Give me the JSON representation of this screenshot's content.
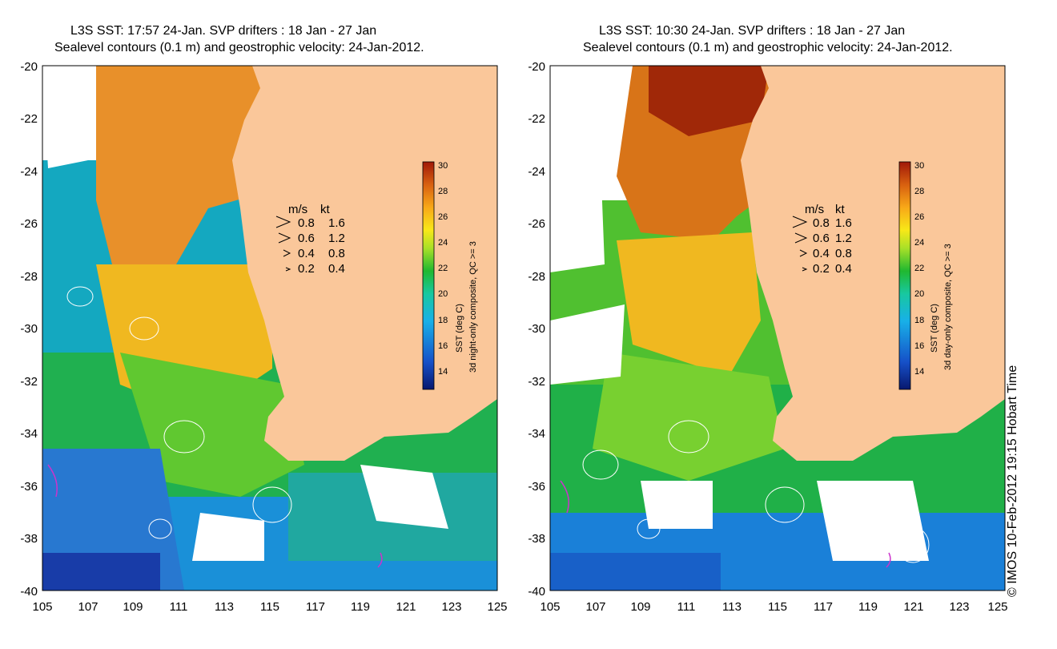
{
  "colors": {
    "land": "#fac79a",
    "frame": "#000000",
    "contour": "#ffffff",
    "drifter": "#cc33cc"
  },
  "credit": "© IMOS 10-Feb-2012 19:15 Hobart Time",
  "axes": {
    "lon_range": [
      105,
      125
    ],
    "lat_range": [
      -40,
      -20
    ],
    "x_ticks": [
      "105",
      "107",
      "109",
      "111",
      "113",
      "115",
      "117",
      "119",
      "121",
      "123",
      "125"
    ],
    "y_ticks": [
      "-20",
      "-22",
      "-24",
      "-26",
      "-28",
      "-30",
      "-32",
      "-34",
      "-36",
      "-38",
      "-40"
    ]
  },
  "velocity_legend": {
    "unit_ms": "m/s",
    "unit_kt": "kt",
    "rows": [
      {
        "ms": "0.8",
        "kt": "1.6"
      },
      {
        "ms": "0.6",
        "kt": "1.2"
      },
      {
        "ms": "0.4",
        "kt": "0.8"
      },
      {
        "ms": "0.2",
        "kt": "0.4"
      }
    ]
  },
  "colorbar": {
    "range": [
      13,
      30
    ],
    "ticks": [
      "30",
      "28",
      "26",
      "24",
      "22",
      "20",
      "18",
      "16",
      "14"
    ],
    "label": "SST (deg C)"
  },
  "panels": [
    {
      "title_line1": "L3S SST: 17:57 24-Jan. SVP drifters : 18 Jan - 27 Jan",
      "title_line2": "Sealevel contours (0.1 m) and geostrophic velocity: 24-Jan-2012.",
      "composite_label": "3d night-only composite, QC >= 3"
    },
    {
      "title_line1": "L3S SST: 10:30 24-Jan. SVP drifters : 18 Jan - 27 Jan",
      "title_line2": "Sealevel contours (0.1 m) and geostrophic velocity: 24-Jan-2012.",
      "composite_label": "3d day-only composite, QC >= 3"
    }
  ]
}
